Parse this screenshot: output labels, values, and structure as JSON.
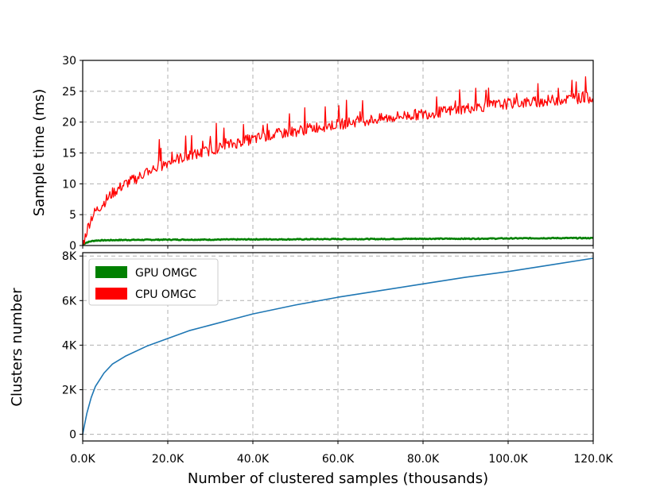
{
  "chart_data": [
    {
      "type": "line",
      "panel": "top",
      "ylabel": "Sample time (ms)",
      "xlim": [
        0,
        120
      ],
      "ylim": [
        0,
        30
      ],
      "grid": true,
      "xticks": [
        0,
        20,
        40,
        60,
        80,
        100,
        120
      ],
      "yticks": [
        0,
        5,
        10,
        15,
        20,
        25,
        30
      ],
      "ytick_labels": [
        "0",
        "5",
        "10",
        "15",
        "20",
        "25",
        "30"
      ],
      "series": [
        {
          "name": "GPU OMGC",
          "color": "#008000",
          "x": [
            0,
            1,
            2,
            3,
            5,
            10,
            20,
            30,
            40,
            50,
            60,
            70,
            80,
            90,
            100,
            110,
            120
          ],
          "y": [
            0.2,
            0.5,
            0.7,
            0.8,
            0.85,
            0.9,
            0.95,
            0.95,
            1.0,
            1.0,
            1.05,
            1.05,
            1.1,
            1.1,
            1.15,
            1.2,
            1.2
          ]
        },
        {
          "name": "CPU OMGC",
          "color": "#ff0000",
          "x": [
            0,
            1,
            2,
            3,
            5,
            7,
            10,
            13,
            15,
            18,
            20,
            22,
            25,
            28,
            30,
            33,
            35,
            38,
            40,
            45,
            50,
            55,
            60,
            65,
            70,
            75,
            80,
            85,
            90,
            95,
            100,
            105,
            110,
            115,
            120
          ],
          "y": [
            0,
            2.5,
            4.5,
            5.5,
            7,
            8.5,
            10,
            11,
            12,
            12.8,
            13.5,
            14,
            14.5,
            15,
            15.5,
            16,
            16.4,
            17,
            17.2,
            18,
            18.5,
            19.2,
            19.6,
            20.2,
            20.5,
            21,
            21.3,
            21.7,
            22.2,
            22.6,
            23,
            23.2,
            23.5,
            23.8,
            24
          ]
        }
      ]
    },
    {
      "type": "line",
      "panel": "bottom",
      "xlabel": "Number of clustered samples (thousands)",
      "ylabel": "Clusters number",
      "xlim": [
        0,
        120
      ],
      "ylim": [
        -300,
        8150
      ],
      "grid": true,
      "xticks": [
        0,
        20,
        40,
        60,
        80,
        100,
        120
      ],
      "xtick_labels": [
        "0.0K",
        "20.0K",
        "40.0K",
        "60.0K",
        "80.0K",
        "100.0K",
        "120.0K"
      ],
      "yticks": [
        0,
        2000,
        4000,
        6000,
        8000
      ],
      "ytick_labels": [
        "0",
        "2K",
        "4K",
        "6K",
        "8K"
      ],
      "series": [
        {
          "color": "#1f77b4",
          "x": [
            0,
            0.5,
            1,
            2,
            3,
            5,
            7,
            10,
            15,
            20,
            25,
            30,
            35,
            40,
            50,
            60,
            70,
            80,
            90,
            100,
            110,
            120
          ],
          "y": [
            0,
            500,
            950,
            1650,
            2150,
            2750,
            3150,
            3500,
            3950,
            4300,
            4650,
            4900,
            5150,
            5400,
            5800,
            6150,
            6450,
            6750,
            7050,
            7300,
            7600,
            7900
          ]
        }
      ]
    }
  ],
  "legend": {
    "entries": [
      {
        "label": "GPU OMGC",
        "color": "#008000"
      },
      {
        "label": "CPU OMGC",
        "color": "#ff0000"
      }
    ]
  }
}
